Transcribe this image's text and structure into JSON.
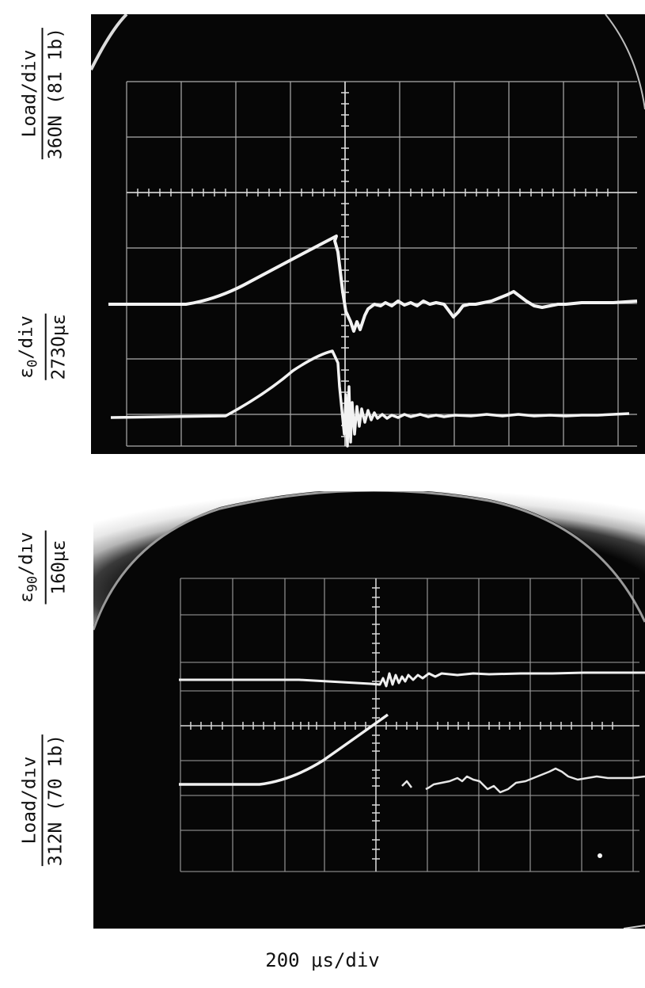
{
  "labels": {
    "top_load_num": "Load/div",
    "top_load_den": "36ON (81 1b)",
    "top_strain_eps": "ε",
    "top_strain_sub": "0",
    "top_strain_rest": "/div",
    "top_strain_den": "273Oμε",
    "bottom_strain_eps": "ε",
    "bottom_strain_sub": "90",
    "bottom_strain_rest": "/dıv",
    "bottom_strain_den": "160με",
    "bottom_load_num": "Load/dıv",
    "bottom_load_den": "312N (70 1b)",
    "time_axis": "200 μs/div"
  },
  "colors": {
    "screen": "#060606",
    "grid": "#c9c9c9",
    "trace": "#f2f2f2",
    "ink": "#111111"
  }
}
